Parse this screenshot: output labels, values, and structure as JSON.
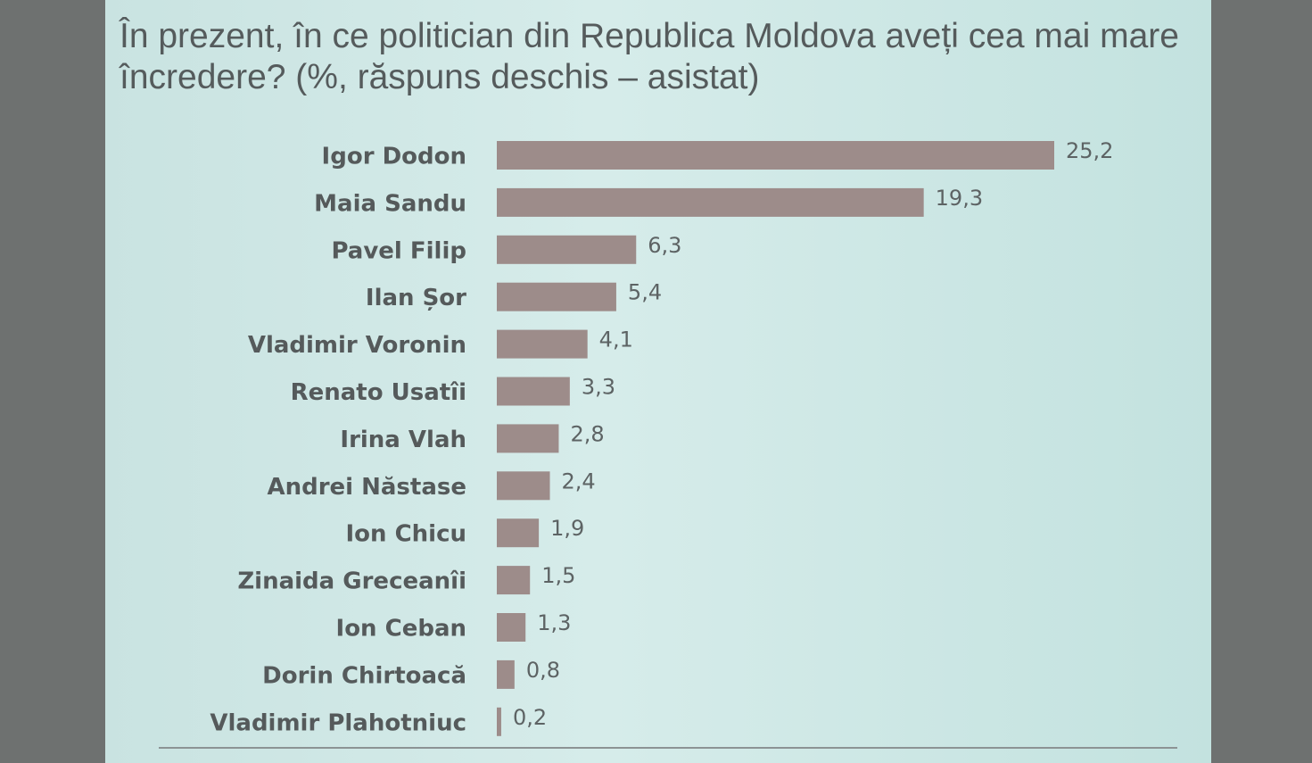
{
  "chart_data": {
    "type": "bar",
    "orientation": "horizontal",
    "title": "În prezent, în ce politician din Republica Moldova aveți cea mai mare încredere? (%, răspuns deschis – asistat)",
    "categories": [
      "Igor Dodon",
      "Maia Sandu",
      "Pavel Filip",
      "Ilan Șor",
      "Vladimir Voronin",
      "Renato Usatîi",
      "Irina Vlah",
      "Andrei Năstase",
      "Ion Chicu",
      "Zinaida Greceanîi",
      "Ion Ceban",
      "Dorin Chirtoacă",
      "Vladimir Plahotniuc"
    ],
    "values": [
      25.2,
      19.3,
      6.3,
      5.4,
      4.1,
      3.3,
      2.8,
      2.4,
      1.9,
      1.5,
      1.3,
      0.8,
      0.2
    ],
    "value_labels": [
      "25,2",
      "19,3",
      "6,3",
      "5,4",
      "4,1",
      "3,3",
      "2,8",
      "2,4",
      "1,9",
      "1,5",
      "1,3",
      "0,8",
      "0,2"
    ],
    "color": "#9d8c8a"
  }
}
